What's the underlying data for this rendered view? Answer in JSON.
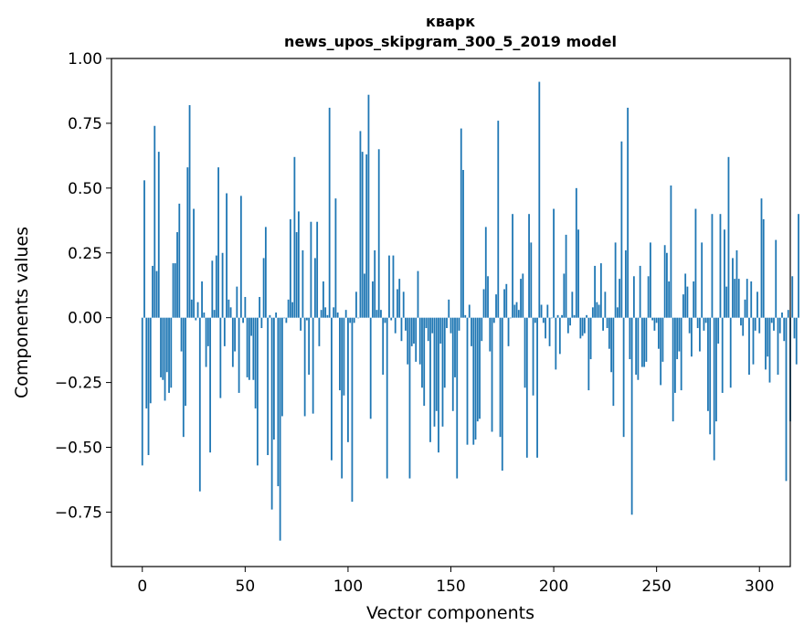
{
  "chart_data": {
    "type": "bar",
    "title": "кварк",
    "subtitle": "news_upos_skipgram_300_5_2019 model",
    "xlabel": "Vector components",
    "ylabel": "Components values",
    "xlim": [
      -15,
      315
    ],
    "ylim": [
      -0.96,
      1.0
    ],
    "xticks": [
      0,
      50,
      100,
      150,
      200,
      250,
      300
    ],
    "xtick_labels": [
      "0",
      "50",
      "100",
      "150",
      "200",
      "250",
      "300"
    ],
    "yticks": [
      1.0,
      0.75,
      0.5,
      0.25,
      0.0,
      -0.25,
      -0.5,
      -0.75
    ],
    "ytick_labels": [
      "1.00",
      "0.75",
      "0.50",
      "0.25",
      "0.00",
      "−0.25",
      "−0.50",
      "−0.75"
    ],
    "bar_color": "#1f77b4",
    "values": [
      -0.57,
      0.53,
      -0.35,
      -0.53,
      -0.33,
      0.2,
      0.74,
      0.18,
      0.64,
      -0.23,
      -0.24,
      -0.32,
      -0.21,
      -0.29,
      -0.27,
      0.21,
      0.21,
      0.33,
      0.44,
      -0.13,
      -0.46,
      -0.34,
      0.58,
      0.82,
      0.07,
      0.42,
      -0.01,
      0.06,
      -0.67,
      0.14,
      0.02,
      -0.19,
      -0.11,
      -0.52,
      0.22,
      0.03,
      0.24,
      0.58,
      -0.31,
      0.25,
      -0.11,
      0.48,
      0.07,
      0.04,
      -0.19,
      -0.13,
      0.12,
      -0.29,
      0.47,
      -0.02,
      0.08,
      -0.23,
      -0.24,
      -0.07,
      -0.24,
      -0.35,
      -0.57,
      0.08,
      -0.04,
      0.23,
      0.35,
      -0.53,
      0.01,
      -0.74,
      -0.47,
      0.02,
      -0.65,
      -0.86,
      -0.38,
      0.0,
      -0.02,
      0.07,
      0.38,
      0.06,
      0.62,
      0.33,
      0.41,
      -0.05,
      0.26,
      -0.38,
      -0.01,
      -0.22,
      0.37,
      -0.37,
      0.23,
      0.37,
      -0.11,
      0.03,
      0.14,
      0.04,
      0.01,
      0.81,
      -0.55,
      0.04,
      0.46,
      0.02,
      -0.28,
      -0.62,
      -0.3,
      0.03,
      -0.48,
      -0.02,
      -0.71,
      -0.02,
      0.1,
      0.0,
      0.72,
      0.64,
      0.17,
      0.63,
      0.86,
      -0.39,
      0.14,
      0.26,
      0.03,
      0.65,
      0.03,
      -0.22,
      -0.02,
      -0.62,
      0.24,
      -0.01,
      0.24,
      -0.06,
      0.11,
      0.15,
      -0.09,
      0.1,
      -0.05,
      -0.18,
      -0.62,
      -0.11,
      -0.1,
      -0.17,
      0.18,
      -0.18,
      -0.27,
      -0.34,
      -0.04,
      -0.09,
      -0.48,
      -0.06,
      -0.42,
      -0.36,
      -0.52,
      -0.1,
      -0.42,
      -0.27,
      -0.04,
      0.07,
      -0.06,
      -0.36,
      -0.23,
      -0.62,
      -0.05,
      0.73,
      0.57,
      0.01,
      -0.49,
      0.05,
      -0.11,
      -0.49,
      -0.47,
      -0.4,
      -0.39,
      -0.09,
      0.11,
      0.35,
      0.16,
      -0.13,
      -0.44,
      -0.02,
      0.09,
      0.76,
      -0.46,
      -0.59,
      0.11,
      0.13,
      -0.11,
      0.0,
      0.4,
      0.05,
      0.06,
      0.03,
      0.15,
      0.17,
      -0.27,
      -0.54,
      0.4,
      0.29,
      -0.3,
      -0.02,
      -0.54,
      0.91,
      0.05,
      -0.02,
      -0.08,
      0.05,
      -0.11,
      0.0,
      0.42,
      -0.2,
      0.01,
      -0.14,
      0.01,
      0.17,
      0.32,
      -0.06,
      -0.03,
      0.1,
      0.01,
      0.5,
      0.34,
      -0.08,
      -0.07,
      -0.06,
      0.01,
      -0.28,
      -0.16,
      0.04,
      0.2,
      0.06,
      0.05,
      0.21,
      -0.05,
      0.1,
      -0.04,
      -0.12,
      -0.21,
      -0.34,
      0.29,
      0.04,
      0.15,
      0.68,
      -0.46,
      0.26,
      0.81,
      -0.16,
      -0.76,
      0.16,
      -0.22,
      -0.24,
      0.2,
      -0.19,
      -0.19,
      -0.17,
      0.16,
      0.29,
      -0.01,
      -0.05,
      -0.02,
      -0.12,
      -0.26,
      -0.17,
      0.28,
      0.25,
      0.14,
      0.51,
      -0.4,
      -0.29,
      -0.16,
      -0.13,
      -0.28,
      0.09,
      0.17,
      0.12,
      -0.06,
      -0.15,
      0.14,
      0.42,
      -0.04,
      -0.13,
      0.29,
      -0.05,
      -0.02,
      -0.36,
      -0.45,
      0.4,
      -0.55,
      -0.4,
      -0.1,
      0.4,
      -0.29,
      0.34,
      0.12,
      0.62,
      -0.27,
      0.23,
      0.15,
      0.26,
      0.15,
      -0.03,
      -0.07,
      0.07,
      0.15,
      -0.22,
      0.14,
      -0.18,
      -0.05,
      0.1,
      -0.06,
      0.46,
      0.38,
      -0.2,
      -0.15,
      -0.25,
      -0.02,
      -0.05,
      0.3,
      -0.22,
      -0.06,
      0.02,
      -0.09,
      -0.63,
      0.03,
      -0.4,
      0.16,
      -0.08,
      -0.18,
      0.4
    ]
  }
}
